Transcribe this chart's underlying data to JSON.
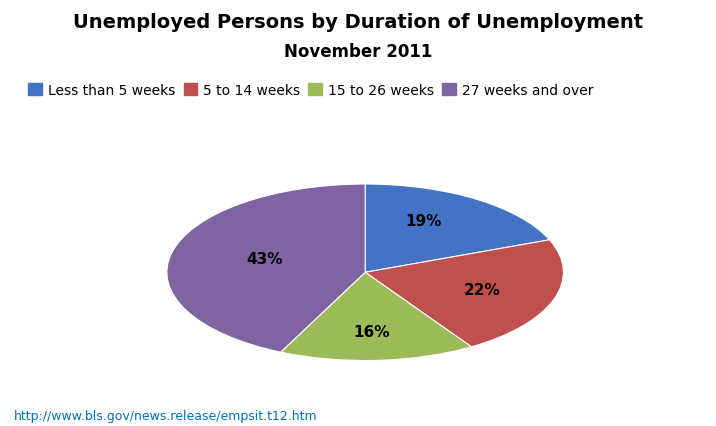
{
  "title_line1": "Unemployed Persons by Duration of Unemployment",
  "title_line2": "November 2011",
  "slices": [
    19,
    22,
    16,
    43
  ],
  "labels": [
    "Less than 5 weeks",
    "5 to 14 weeks",
    "15 to 26 weeks",
    "27 weeks and over"
  ],
  "colors": [
    "#4472C4",
    "#C0504D",
    "#9BBB59",
    "#8064A2"
  ],
  "pct_labels": [
    "19%",
    "22%",
    "16%",
    "43%"
  ],
  "url_text": "http://www.bls.gov/news.release/empsit.t12.htm",
  "url_color": "#0070C0",
  "background_color": "#FFFFFF",
  "startangle": 90,
  "title_fontsize": 14,
  "subtitle_fontsize": 12,
  "legend_fontsize": 10,
  "label_fontsize": 11
}
